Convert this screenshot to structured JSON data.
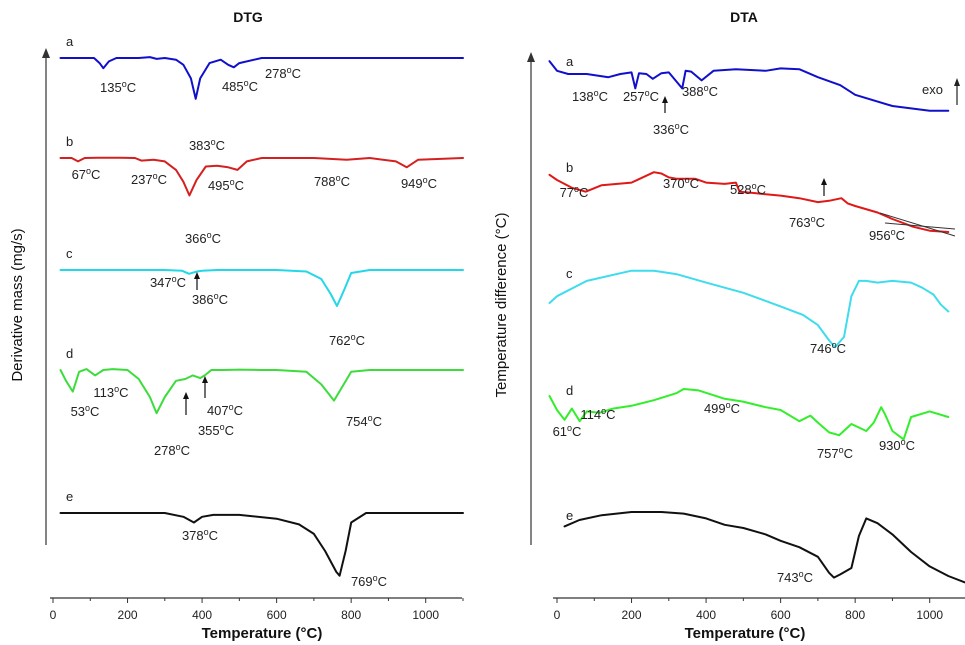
{
  "chart_data": [
    {
      "type": "line",
      "title": "DTG",
      "xlabel": "Temperature (°C)",
      "ylabel": "Derivative mass (mg/s)",
      "xlim": [
        0,
        1100
      ],
      "xticks": [
        0,
        200,
        400,
        600,
        800,
        1000
      ],
      "grid": false,
      "series": [
        {
          "name": "a",
          "color": "#1010cc",
          "x": [
            20,
            110,
            125,
            135,
            150,
            170,
            230,
            260,
            278,
            300,
            330,
            350,
            370,
            383,
            395,
            420,
            450,
            470,
            485,
            500,
            560,
            600,
            800,
            1100
          ],
          "y": [
            0,
            0,
            -0.3,
            -0.6,
            -0.2,
            0,
            0,
            0.05,
            -0.05,
            0,
            -0.1,
            -0.4,
            -1.2,
            -2.4,
            -1.2,
            -0.3,
            -0.1,
            -0.4,
            -0.55,
            -0.3,
            0,
            0,
            0,
            0
          ],
          "peaks": [
            {
              "x": 135,
              "label": "135°C"
            },
            {
              "x": 278,
              "label": "278°C"
            },
            {
              "x": 383,
              "label": "383°C"
            },
            {
              "x": 485,
              "label": "485°C"
            }
          ]
        },
        {
          "name": "b",
          "color": "#d42020",
          "x": [
            20,
            50,
            67,
            85,
            120,
            180,
            220,
            237,
            270,
            300,
            330,
            350,
            366,
            385,
            410,
            440,
            470,
            495,
            520,
            560,
            640,
            700,
            788,
            850,
            920,
            949,
            980,
            1100
          ],
          "y": [
            0,
            0,
            -0.2,
            0,
            0.02,
            0.02,
            0,
            -0.15,
            -0.1,
            -0.2,
            -0.7,
            -1.4,
            -2.2,
            -1.3,
            -0.5,
            -0.45,
            -0.55,
            -0.7,
            -0.2,
            0,
            0,
            0,
            -0.1,
            0,
            -0.2,
            -0.55,
            -0.1,
            0
          ],
          "peaks": [
            {
              "x": 67,
              "label": "67°C"
            },
            {
              "x": 237,
              "label": "237°C"
            },
            {
              "x": 366,
              "label": "366°C"
            },
            {
              "x": 495,
              "label": "495°C"
            },
            {
              "x": 788,
              "label": "788°C"
            },
            {
              "x": 949,
              "label": "949°C"
            }
          ]
        },
        {
          "name": "c",
          "color": "#22d8e8",
          "x": [
            20,
            300,
            347,
            365,
            386,
            400,
            440,
            600,
            680,
            720,
            745,
            762,
            780,
            800,
            850,
            1100
          ],
          "y": [
            0,
            0,
            -0.05,
            -0.25,
            -0.1,
            -0.05,
            0,
            0,
            -0.1,
            -0.6,
            -1.6,
            -2.4,
            -1.4,
            -0.2,
            0,
            0
          ],
          "peaks": [
            {
              "x": 347,
              "label": "347°C"
            },
            {
              "x": 386,
              "label": "386°C"
            },
            {
              "x": 762,
              "label": "762°C"
            }
          ]
        },
        {
          "name": "d",
          "color": "#3ddc3d",
          "x": [
            20,
            35,
            53,
            70,
            90,
            113,
            135,
            160,
            200,
            230,
            260,
            278,
            300,
            330,
            355,
            375,
            395,
            407,
            425,
            460,
            500,
            560,
            600,
            680,
            720,
            754,
            780,
            800,
            850,
            1100
          ],
          "y": [
            0,
            -0.6,
            -1.2,
            -0.1,
            0.05,
            -0.3,
            0,
            0.05,
            0,
            -0.5,
            -1.5,
            -2.4,
            -1.5,
            -0.6,
            -0.5,
            -0.3,
            -0.45,
            -0.3,
            0,
            0,
            0.02,
            0,
            0,
            -0.1,
            -0.8,
            -1.7,
            -0.8,
            -0.1,
            0,
            0
          ],
          "peaks": [
            {
              "x": 53,
              "label": "53°C"
            },
            {
              "x": 113,
              "label": "113°C"
            },
            {
              "x": 278,
              "label": "278°C"
            },
            {
              "x": 355,
              "label": "355°C"
            },
            {
              "x": 407,
              "label": "407°C"
            },
            {
              "x": 754,
              "label": "754°C"
            }
          ]
        },
        {
          "name": "e",
          "color": "#111111",
          "x": [
            20,
            300,
            350,
            378,
            400,
            430,
            500,
            600,
            660,
            700,
            730,
            760,
            769,
            785,
            800,
            840,
            1100
          ],
          "y": [
            0,
            0,
            -0.2,
            -0.5,
            -0.2,
            -0.1,
            -0.1,
            -0.3,
            -0.6,
            -1.1,
            -2.0,
            -3.1,
            -3.3,
            -2.0,
            -0.5,
            0,
            0
          ],
          "peaks": [
            {
              "x": 378,
              "label": "378°C"
            },
            {
              "x": 769,
              "label": "769°C"
            }
          ]
        }
      ]
    },
    {
      "type": "line",
      "title": "DTA",
      "xlabel": "Temperature (°C)",
      "ylabel": "Temperature difference (°C)",
      "annotation": "exo",
      "xlim": [
        -10,
        1090
      ],
      "xticks": [
        0,
        200,
        400,
        600,
        800,
        1000
      ],
      "grid": false,
      "series": [
        {
          "name": "a",
          "color": "#1010cc",
          "x": [
            -20,
            0,
            30,
            80,
            138,
            170,
            200,
            210,
            220,
            240,
            257,
            280,
            300,
            336,
            345,
            360,
            388,
            420,
            480,
            560,
            600,
            650,
            700,
            760,
            800,
            900,
            1000,
            1050
          ],
          "y": [
            0.8,
            0.2,
            0,
            0,
            -0.2,
            0,
            0.1,
            -0.9,
            0.05,
            0,
            -0.3,
            0.05,
            0.1,
            -0.9,
            0.2,
            0.15,
            -0.4,
            0.2,
            0.3,
            0.2,
            0.35,
            0.3,
            -0.2,
            -0.7,
            -1.3,
            -2.0,
            -2.3,
            -2.3
          ],
          "peaks": [
            {
              "x": 138,
              "label": "138°C"
            },
            {
              "x": 257,
              "label": "257°C"
            },
            {
              "x": 336,
              "label": "336°C"
            },
            {
              "x": 388,
              "label": "388°C"
            }
          ]
        },
        {
          "name": "b",
          "color": "#e01818",
          "x": [
            -20,
            0,
            40,
            77,
            120,
            200,
            260,
            280,
            300,
            320,
            370,
            400,
            450,
            480,
            490,
            528,
            560,
            600,
            650,
            700,
            730,
            763,
            780,
            800,
            860,
            900,
            956,
            1000,
            1050
          ],
          "y": [
            0.4,
            0,
            -0.6,
            -0.9,
            -0.4,
            -0.2,
            0.6,
            0.5,
            0.2,
            0.1,
            0.1,
            -0.2,
            -0.3,
            -0.2,
            -0.9,
            -1.0,
            -1.1,
            -1.2,
            -1.4,
            -1.7,
            -1.6,
            -1.4,
            -1.8,
            -2.0,
            -2.5,
            -3.0,
            -3.6,
            -3.9,
            -4.0
          ],
          "peaks": [
            {
              "x": 77,
              "label": "77°C"
            },
            {
              "x": 370,
              "label": "370°C"
            },
            {
              "x": 528,
              "label": "528°C"
            },
            {
              "x": 763,
              "label": "763°C"
            },
            {
              "x": 956,
              "label": "956°C"
            }
          ]
        },
        {
          "name": "c",
          "color": "#3fdcee",
          "x": [
            -20,
            0,
            80,
            200,
            260,
            320,
            400,
            500,
            600,
            660,
            700,
            730,
            746,
            770,
            790,
            810,
            830,
            860,
            900,
            950,
            980,
            1010,
            1030,
            1050
          ],
          "y": [
            -1.0,
            -0.6,
            0.3,
            0.9,
            0.9,
            0.7,
            0.2,
            -0.4,
            -1.2,
            -1.7,
            -2.3,
            -3.2,
            -3.6,
            -3.0,
            -0.6,
            0.3,
            0.3,
            0.2,
            0.3,
            0.2,
            -0.1,
            -0.5,
            -1.1,
            -1.5
          ],
          "peaks": [
            {
              "x": 746,
              "label": "746°C"
            }
          ]
        },
        {
          "name": "d",
          "color": "#33ee2a",
          "x": [
            -20,
            0,
            20,
            40,
            61,
            80,
            114,
            150,
            200,
            260,
            320,
            340,
            380,
            450,
            499,
            560,
            600,
            650,
            680,
            700,
            730,
            757,
            790,
            830,
            850,
            870,
            880,
            900,
            930,
            950,
            1000,
            1050
          ],
          "y": [
            0.5,
            -0.5,
            -1.2,
            -0.4,
            -1.3,
            -0.6,
            -0.7,
            -0.4,
            -0.2,
            0.2,
            0.7,
            1.0,
            0.9,
            0.3,
            0.1,
            -0.3,
            -0.5,
            -1.3,
            -0.9,
            -1.4,
            -2.1,
            -2.3,
            -1.5,
            -2.0,
            -1.4,
            -0.3,
            -0.8,
            -2.0,
            -2.6,
            -1.0,
            -0.6,
            -1.0
          ],
          "peaks": [
            {
              "x": 61,
              "label": "61°C"
            },
            {
              "x": 114,
              "label": "114°C"
            },
            {
              "x": 499,
              "label": "499°C"
            },
            {
              "x": 757,
              "label": "757°C"
            },
            {
              "x": 930,
              "label": "930°C"
            }
          ]
        },
        {
          "name": "e",
          "color": "#111111",
          "x": [
            20,
            60,
            120,
            200,
            280,
            340,
            400,
            450,
            500,
            560,
            600,
            650,
            700,
            730,
            743,
            760,
            790,
            810,
            830,
            860,
            900,
            950,
            1000,
            1050,
            1100
          ],
          "y": [
            0.1,
            0.5,
            0.8,
            1.0,
            1.0,
            0.9,
            0.6,
            0.2,
            0,
            -0.4,
            -0.8,
            -1.2,
            -1.8,
            -2.8,
            -3.1,
            -2.9,
            -2.5,
            -0.5,
            0.6,
            0.3,
            -0.4,
            -1.5,
            -2.4,
            -3.0,
            -3.4
          ],
          "peaks": [
            {
              "x": 743,
              "label": "743°C"
            }
          ]
        }
      ]
    }
  ]
}
